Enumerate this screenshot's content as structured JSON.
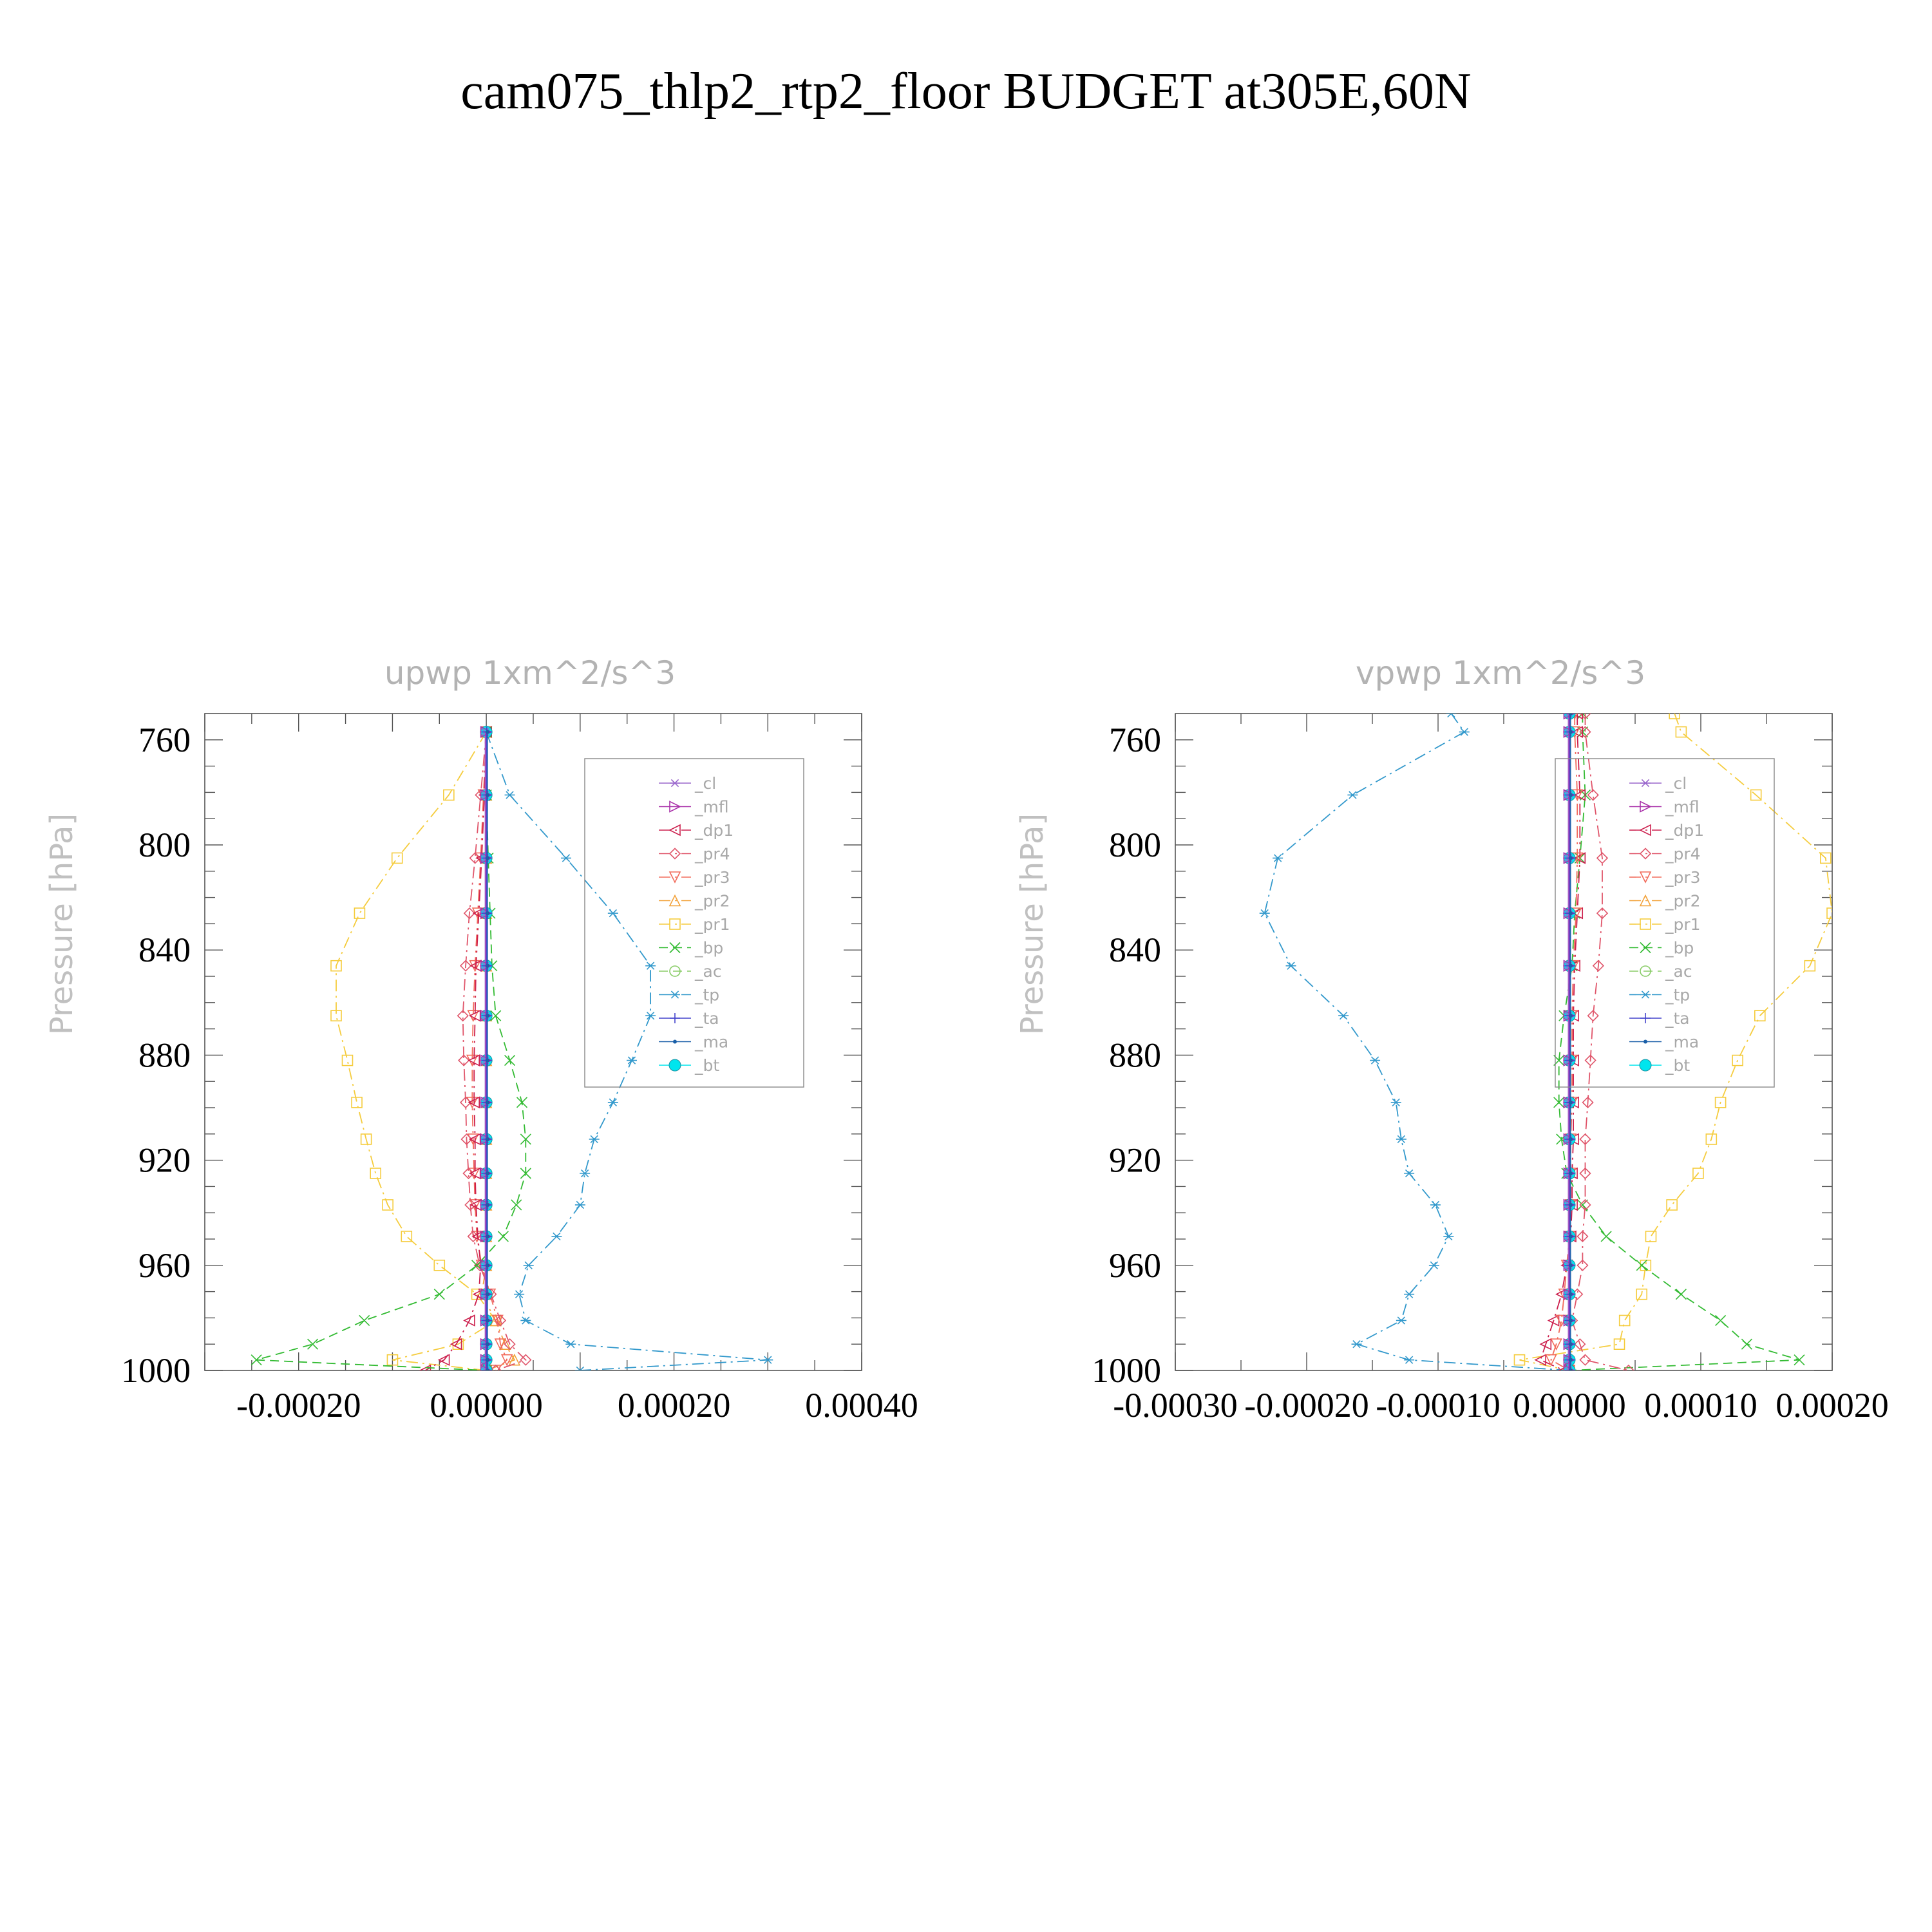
{
  "figure": {
    "title": "cam075_thlp2_rtp2_floor  BUDGET at305E,60N"
  },
  "legend": [
    {
      "label": "_cl",
      "color": "#9966cc",
      "marker": "star",
      "dash": "solid"
    },
    {
      "label": "_mfl",
      "color": "#aa33aa",
      "marker": "triright",
      "dash": "solid"
    },
    {
      "label": "_dp1",
      "color": "#cc1f4d",
      "marker": "trileft",
      "dash": "dashdot"
    },
    {
      "label": "_pr4",
      "color": "#e0556a",
      "marker": "diamond",
      "dash": "dashdot"
    },
    {
      "label": "_pr3",
      "color": "#f26b5b",
      "marker": "tridown",
      "dash": "dashdot"
    },
    {
      "label": "_pr2",
      "color": "#f2a23a",
      "marker": "triup",
      "dash": "dashdot"
    },
    {
      "label": "_pr1",
      "color": "#f5cc3d",
      "marker": "square",
      "dash": "dashdot"
    },
    {
      "label": "_bp",
      "color": "#33bb33",
      "marker": "x",
      "dash": "dash"
    },
    {
      "label": "_ac",
      "color": "#88cc66",
      "marker": "circle",
      "dash": "dash"
    },
    {
      "label": "_tp",
      "color": "#3399cc",
      "marker": "asterisk",
      "dash": "dashdot"
    },
    {
      "label": "_ta",
      "color": "#4444cc",
      "marker": "plus",
      "dash": "solid"
    },
    {
      "label": "_ma",
      "color": "#1a5fa8",
      "marker": "dot",
      "dash": "solid"
    },
    {
      "label": "_bt",
      "color": "#00e5ee",
      "marker": "filledcircle",
      "dash": "solid"
    }
  ],
  "chart_data": [
    {
      "type": "line",
      "title": "upwp   1xm^2/s^3",
      "xlabel": "",
      "ylabel": "Pressure [hPa]",
      "xlim": [
        -0.0003,
        0.0004
      ],
      "ylim": [
        1000,
        750
      ],
      "x_ticks": [
        "-0.00020",
        "0.00000",
        "0.00020",
        "0.00040"
      ],
      "x_tick_values": [
        -0.0002,
        0.0,
        0.0002,
        0.0004
      ],
      "y_ticks": [
        "760",
        "800",
        "840",
        "880",
        "920",
        "960",
        "1000"
      ],
      "y_tick_values": [
        760,
        800,
        840,
        880,
        920,
        960,
        1000
      ],
      "pressure": [
        757,
        781,
        805,
        826,
        846,
        865,
        882,
        898,
        912,
        925,
        937,
        949,
        960,
        971,
        981,
        990,
        996,
        1000
      ],
      "series": [
        {
          "name": "_pr1",
          "values": [
            0,
            -4e-05,
            -9.5e-05,
            -0.000135,
            -0.00016,
            -0.00016,
            -0.000148,
            -0.000138,
            -0.000128,
            -0.000118,
            -0.000105,
            -8.5e-05,
            -5e-05,
            -1e-05,
            1e-05,
            -3e-05,
            -0.0001,
            0
          ]
        },
        {
          "name": "_pr2",
          "values": [
            0,
            0,
            0,
            0,
            0,
            0,
            0,
            0,
            0,
            0,
            0,
            0,
            0,
            -5e-06,
            1e-05,
            2e-05,
            3e-05,
            0
          ]
        },
        {
          "name": "_pr3",
          "values": [
            0,
            -3e-06,
            -6e-06,
            -9e-06,
            -1.2e-05,
            -1.4e-05,
            -1.5e-05,
            -1.5e-05,
            -1.4e-05,
            -1.3e-05,
            -1.2e-05,
            -1e-05,
            -5e-06,
            4e-06,
            1.2e-05,
            1.5e-05,
            2.2e-05,
            1e-05
          ]
        },
        {
          "name": "_pr4",
          "values": [
            0,
            -6e-06,
            -1.2e-05,
            -1.8e-05,
            -2.2e-05,
            -2.5e-05,
            -2.4e-05,
            -2.2e-05,
            -2.1e-05,
            -1.9e-05,
            -1.7e-05,
            -1.4e-05,
            -7e-06,
            5e-06,
            1.5e-05,
            2.5e-05,
            4.2e-05,
            1e-05
          ]
        },
        {
          "name": "_dp1",
          "values": [
            0,
            -2e-06,
            -5e-06,
            -8e-06,
            -1.1e-05,
            -1.2e-05,
            -1.3e-05,
            -1.3e-05,
            -1.2e-05,
            -1.2e-05,
            -1.1e-05,
            -9e-06,
            -6e-06,
            -8e-06,
            -1.8e-05,
            -3.2e-05,
            -4.5e-05,
            -6.5e-05
          ]
        },
        {
          "name": "_bp",
          "values": [
            0,
            0,
            2e-06,
            4e-06,
            6e-06,
            1e-05,
            2.5e-05,
            3.8e-05,
            4.2e-05,
            4.2e-05,
            3.2e-05,
            1.8e-05,
            -1e-05,
            -5e-05,
            -0.00013,
            -0.000185,
            -0.000245,
            0
          ]
        },
        {
          "name": "_tp",
          "values": [
            0,
            2.5e-05,
            8.5e-05,
            0.000135,
            0.000175,
            0.000175,
            0.000155,
            0.000135,
            0.000115,
            0.000105,
            0.0001,
            7.5e-05,
            4.5e-05,
            3.5e-05,
            4.2e-05,
            9e-05,
            0.0003,
            0.0001
          ]
        },
        {
          "name": "_bt",
          "values": [
            0,
            0,
            0,
            0,
            0,
            0,
            0,
            0,
            0,
            0,
            0,
            0,
            0,
            0,
            0,
            0,
            0,
            0
          ]
        }
      ]
    },
    {
      "type": "line",
      "title": "vpwp   1xm^2/s^3",
      "xlabel": "",
      "ylabel": "Pressure [hPa]",
      "xlim": [
        -0.0003,
        0.0002
      ],
      "ylim": [
        1000,
        750
      ],
      "x_ticks": [
        "-0.00030",
        "-0.00020",
        "-0.00010",
        "0.00000",
        "0.00010",
        "0.00020"
      ],
      "x_tick_values": [
        -0.0003,
        -0.0002,
        -0.0001,
        0.0,
        0.0001,
        0.0002
      ],
      "y_ticks": [
        "760",
        "800",
        "840",
        "880",
        "920",
        "960",
        "1000"
      ],
      "y_tick_values": [
        760,
        800,
        840,
        880,
        920,
        960,
        1000
      ],
      "pressure": [
        750,
        757,
        781,
        805,
        826,
        846,
        865,
        882,
        898,
        912,
        925,
        937,
        949,
        960,
        971,
        981,
        990,
        996,
        1000
      ],
      "series": [
        {
          "name": "_tp",
          "values": [
            -9e-05,
            -8e-05,
            -0.000165,
            -0.000222,
            -0.000232,
            -0.000212,
            -0.000172,
            -0.000148,
            -0.000132,
            -0.000128,
            -0.000122,
            -0.000102,
            -9.2e-05,
            -0.000103,
            -0.000122,
            -0.000128,
            -0.000162,
            -0.000122,
            0
          ]
        },
        {
          "name": "_pr1",
          "values": [
            8e-05,
            8.5e-05,
            0.000142,
            0.000195,
            0.0002,
            0.000183,
            0.000145,
            0.000128,
            0.000115,
            0.000108,
            9.8e-05,
            7.8e-05,
            6.2e-05,
            5.8e-05,
            5.5e-05,
            4.2e-05,
            3.8e-05,
            -3.8e-05,
            0
          ]
        },
        {
          "name": "_bp",
          "values": [
            1e-05,
            1e-05,
            1.2e-05,
            8e-06,
            4e-06,
            2e-06,
            -4e-06,
            -8e-06,
            -8e-06,
            -6e-06,
            -2e-06,
            1e-05,
            2.8e-05,
            5.5e-05,
            8.5e-05,
            0.000115,
            0.000135,
            0.000175,
            0
          ]
        },
        {
          "name": "_pr4",
          "values": [
            1.2e-05,
            1.2e-05,
            1.8e-05,
            2.5e-05,
            2.5e-05,
            2.2e-05,
            1.8e-05,
            1.6e-05,
            1.4e-05,
            1.2e-05,
            1.2e-05,
            1.2e-05,
            1e-05,
            1e-05,
            6e-06,
            2e-06,
            8e-06,
            1.2e-05,
            4.5e-05
          ]
        },
        {
          "name": "_dp1",
          "values": [
            6e-06,
            6e-06,
            8e-06,
            8e-06,
            6e-06,
            4e-06,
            3e-06,
            3e-06,
            3e-06,
            3e-06,
            2e-06,
            2e-06,
            1e-06,
            -2e-06,
            -6e-06,
            -1.2e-05,
            -1.8e-05,
            -2.2e-05,
            -4e-06
          ]
        },
        {
          "name": "_pr3",
          "values": [
            4e-06,
            4e-06,
            6e-06,
            6e-06,
            5e-06,
            3e-06,
            2e-06,
            2e-06,
            2e-06,
            1e-06,
            1e-06,
            1e-06,
            0,
            -2e-06,
            -4e-06,
            -6e-06,
            -1e-05,
            -1.4e-05,
            0
          ]
        },
        {
          "name": "_bt",
          "values": [
            0,
            0,
            0,
            0,
            0,
            0,
            0,
            0,
            0,
            0,
            0,
            0,
            0,
            0,
            0,
            0,
            0,
            0,
            0
          ]
        }
      ]
    }
  ]
}
